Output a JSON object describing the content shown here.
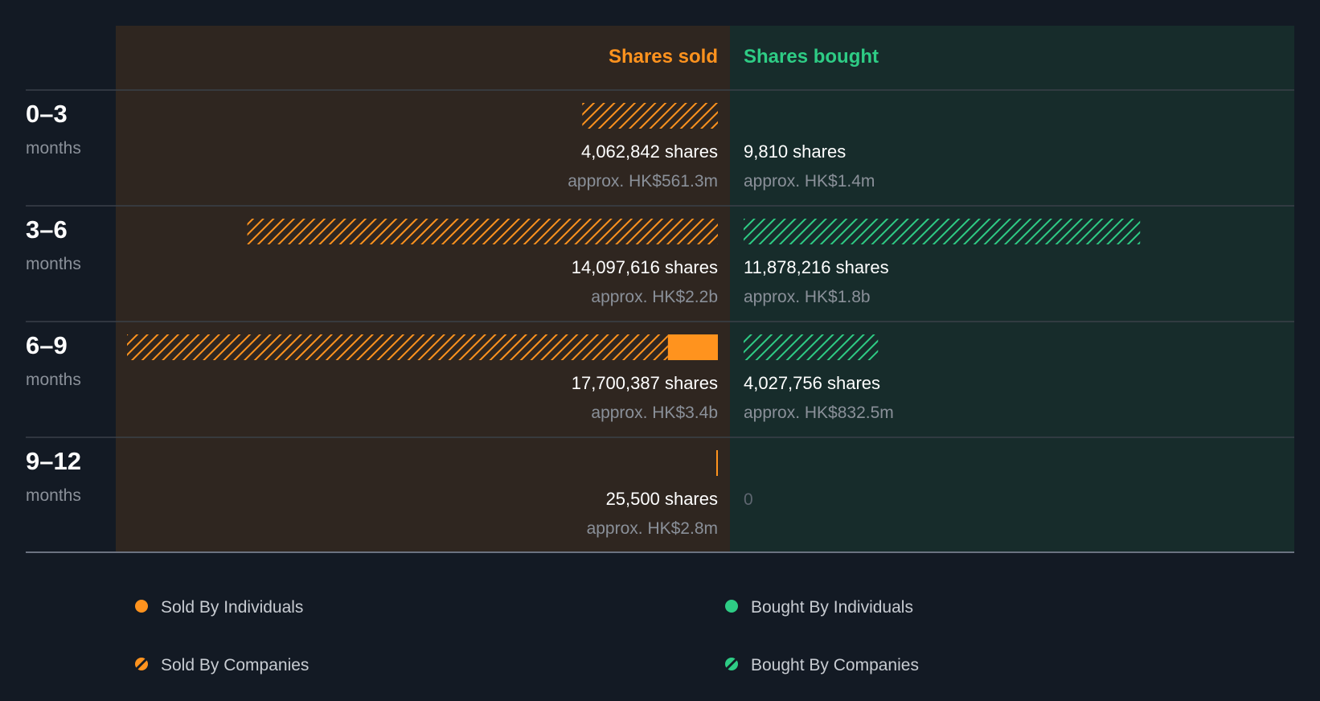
{
  "chart_data": {
    "type": "bar",
    "headers": {
      "sold": "Shares sold",
      "bought": "Shares bought"
    },
    "rows": [
      {
        "period": "0–3",
        "unit": "months",
        "sold_individuals": 0,
        "sold_companies": 4062842,
        "bought_individuals": 0,
        "bought_companies": 9810,
        "sold_shares_label": "4,062,842 shares",
        "sold_value_label": "approx. HK$561.3m",
        "bought_shares_label": "9,810 shares",
        "bought_value_label": "approx. HK$1.4m"
      },
      {
        "period": "3–6",
        "unit": "months",
        "sold_individuals": 0,
        "sold_companies": 14097616,
        "bought_individuals": 0,
        "bought_companies": 11878216,
        "sold_shares_label": "14,097,616 shares",
        "sold_value_label": "approx. HK$2.2b",
        "bought_shares_label": "11,878,216 shares",
        "bought_value_label": "approx. HK$1.8b"
      },
      {
        "period": "6–9",
        "unit": "months",
        "sold_individuals": 1500000,
        "sold_companies": 16200387,
        "bought_individuals": 0,
        "bought_companies": 4027756,
        "sold_shares_label": "17,700,387 shares",
        "sold_value_label": "approx. HK$3.4b",
        "bought_shares_label": "4,027,756 shares",
        "bought_value_label": "approx. HK$832.5m"
      },
      {
        "period": "9–12",
        "unit": "months",
        "sold_individuals": 25500,
        "sold_companies": 0,
        "bought_individuals": 0,
        "bought_companies": 0,
        "sold_shares_label": "25,500 shares",
        "sold_value_label": "approx. HK$2.8m",
        "bought_shares_label": "0",
        "bought_value_label": ""
      }
    ],
    "legend": [
      {
        "key": "sold_individuals",
        "label": "Sold By Individuals",
        "style": "solid",
        "color": "#ff931e"
      },
      {
        "key": "bought_individuals",
        "label": "Bought By Individuals",
        "style": "solid",
        "color": "#2ecc85"
      },
      {
        "key": "sold_companies",
        "label": "Sold By Companies",
        "style": "hatched",
        "color": "#ff931e"
      },
      {
        "key": "bought_companies",
        "label": "Bought By Companies",
        "style": "hatched",
        "color": "#2ecc85"
      }
    ],
    "colors": {
      "background": "#131a24",
      "sold_panel": "#2f2620",
      "bought_panel": "#172c2b",
      "sold": "#ff931e",
      "bought": "#2ecc85"
    }
  }
}
